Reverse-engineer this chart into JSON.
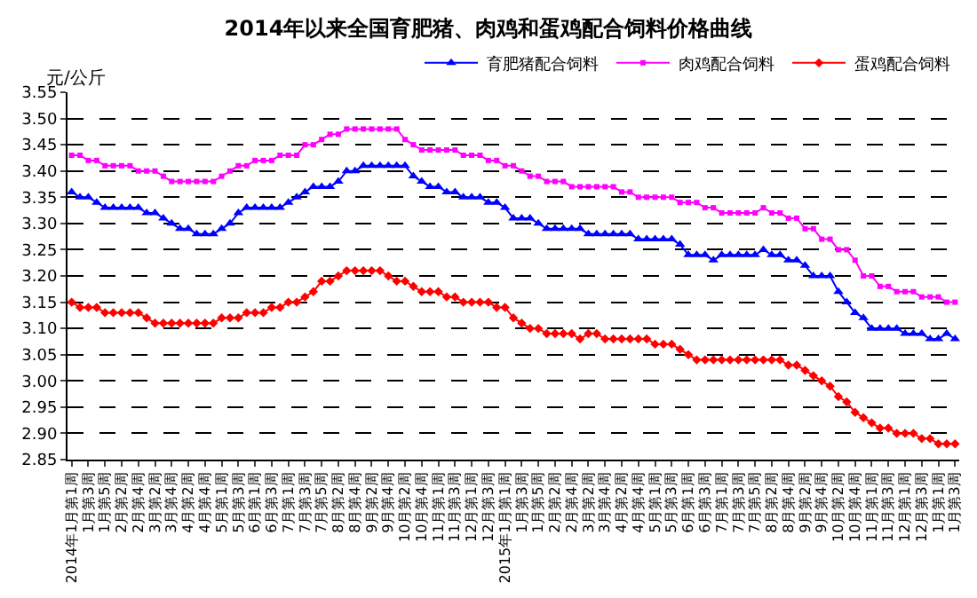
{
  "chart_data": {
    "type": "line",
    "title": "2014年以来全国育肥猪、肉鸡和蛋鸡配合饲料价格曲线",
    "ylabel": "元/公斤",
    "categories": [
      "2014年1月第1周",
      null,
      "1月第3周",
      null,
      "1月第5周",
      null,
      "2月第2周",
      null,
      "2月第4周",
      null,
      "3月第2周",
      null,
      "3月第4周",
      null,
      "4月第2周",
      null,
      "4月第4周",
      null,
      "5月第1周",
      null,
      "5月第3周",
      null,
      "6月第1周",
      null,
      "6月第3周",
      null,
      "7月第1周",
      null,
      "7月第3周",
      null,
      "7月第5周",
      null,
      "8月第2周",
      null,
      "8月第4周",
      null,
      "9月第2周",
      null,
      "9月第4周",
      null,
      "10月第2周",
      null,
      "10月第4周",
      null,
      "11月第1周",
      null,
      "11月第3周",
      null,
      "12月第1周",
      null,
      "12月第3周",
      null,
      "2015年1月第1周",
      null,
      "1月第3周",
      null,
      "1月第5周",
      null,
      "2月第2周",
      null,
      "2月第4周",
      null,
      "3月第2周",
      null,
      "3月第4周",
      null,
      "4月第2周",
      null,
      "4月第4周",
      null,
      "5月第1周",
      null,
      "5月第3周",
      null,
      "6月第1周",
      null,
      "6月第3周",
      null,
      "7月第1周",
      null,
      "7月第3周",
      null,
      "7月第5周",
      null,
      "8月第2周",
      null,
      "8月第4周",
      null,
      "9月第2周",
      null,
      "9月第4周",
      null,
      "10月第2周",
      null,
      "10月第4周",
      null,
      "11月第1周",
      null,
      "11月第3周",
      null,
      "12月第1周",
      null,
      "12月第3周",
      null,
      "1月第1周",
      null,
      "1月第3周"
    ],
    "series": [
      {
        "name": "育肥猪配合饲料",
        "color": "#0000ff",
        "marker": "triangle",
        "values": [
          3.36,
          3.35,
          3.35,
          3.34,
          3.33,
          3.33,
          3.33,
          3.33,
          3.33,
          3.32,
          3.32,
          3.31,
          3.3,
          3.29,
          3.29,
          3.28,
          3.28,
          3.28,
          3.29,
          3.3,
          3.32,
          3.33,
          3.33,
          3.33,
          3.33,
          3.33,
          3.34,
          3.35,
          3.36,
          3.37,
          3.37,
          3.37,
          3.38,
          3.4,
          3.4,
          3.41,
          3.41,
          3.41,
          3.41,
          3.41,
          3.41,
          3.39,
          3.38,
          3.37,
          3.37,
          3.36,
          3.36,
          3.35,
          3.35,
          3.35,
          3.34,
          3.34,
          3.33,
          3.31,
          3.31,
          3.31,
          3.3,
          3.29,
          3.29,
          3.29,
          3.29,
          3.29,
          3.28,
          3.28,
          3.28,
          3.28,
          3.28,
          3.28,
          3.27,
          3.27,
          3.27,
          3.27,
          3.27,
          3.26,
          3.24,
          3.24,
          3.24,
          3.23,
          3.24,
          3.24,
          3.24,
          3.24,
          3.24,
          3.25,
          3.24,
          3.24,
          3.23,
          3.23,
          3.22,
          3.2,
          3.2,
          3.2,
          3.17,
          3.15,
          3.13,
          3.12,
          3.1,
          3.1,
          3.1,
          3.1,
          3.09,
          3.09,
          3.09,
          3.08,
          3.08,
          3.09,
          3.08
        ]
      },
      {
        "name": "肉鸡配合饲料",
        "color": "#ff00ff",
        "marker": "square",
        "values": [
          3.43,
          3.43,
          3.42,
          3.42,
          3.41,
          3.41,
          3.41,
          3.41,
          3.4,
          3.4,
          3.4,
          3.39,
          3.38,
          3.38,
          3.38,
          3.38,
          3.38,
          3.38,
          3.39,
          3.4,
          3.41,
          3.41,
          3.42,
          3.42,
          3.42,
          3.43,
          3.43,
          3.43,
          3.45,
          3.45,
          3.46,
          3.47,
          3.47,
          3.48,
          3.48,
          3.48,
          3.48,
          3.48,
          3.48,
          3.48,
          3.46,
          3.45,
          3.44,
          3.44,
          3.44,
          3.44,
          3.44,
          3.43,
          3.43,
          3.43,
          3.42,
          3.42,
          3.41,
          3.41,
          3.4,
          3.39,
          3.39,
          3.38,
          3.38,
          3.38,
          3.37,
          3.37,
          3.37,
          3.37,
          3.37,
          3.37,
          3.36,
          3.36,
          3.35,
          3.35,
          3.35,
          3.35,
          3.35,
          3.34,
          3.34,
          3.34,
          3.33,
          3.33,
          3.32,
          3.32,
          3.32,
          3.32,
          3.32,
          3.33,
          3.32,
          3.32,
          3.31,
          3.31,
          3.29,
          3.29,
          3.27,
          3.27,
          3.25,
          3.25,
          3.23,
          3.2,
          3.2,
          3.18,
          3.18,
          3.17,
          3.17,
          3.17,
          3.16,
          3.16,
          3.16,
          3.15,
          3.15
        ]
      },
      {
        "name": "蛋鸡配合饲料",
        "color": "#ff0000",
        "marker": "diamond",
        "values": [
          3.15,
          3.14,
          3.14,
          3.14,
          3.13,
          3.13,
          3.13,
          3.13,
          3.13,
          3.12,
          3.11,
          3.11,
          3.11,
          3.11,
          3.11,
          3.11,
          3.11,
          3.11,
          3.12,
          3.12,
          3.12,
          3.13,
          3.13,
          3.13,
          3.14,
          3.14,
          3.15,
          3.15,
          3.16,
          3.17,
          3.19,
          3.19,
          3.2,
          3.21,
          3.21,
          3.21,
          3.21,
          3.21,
          3.2,
          3.19,
          3.19,
          3.18,
          3.17,
          3.17,
          3.17,
          3.16,
          3.16,
          3.15,
          3.15,
          3.15,
          3.15,
          3.14,
          3.14,
          3.12,
          3.11,
          3.1,
          3.1,
          3.09,
          3.09,
          3.09,
          3.09,
          3.08,
          3.09,
          3.09,
          3.08,
          3.08,
          3.08,
          3.08,
          3.08,
          3.08,
          3.07,
          3.07,
          3.07,
          3.06,
          3.05,
          3.04,
          3.04,
          3.04,
          3.04,
          3.04,
          3.04,
          3.04,
          3.04,
          3.04,
          3.04,
          3.04,
          3.03,
          3.03,
          3.02,
          3.01,
          3.0,
          2.99,
          2.97,
          2.96,
          2.94,
          2.93,
          2.92,
          2.91,
          2.91,
          2.9,
          2.9,
          2.9,
          2.89,
          2.89,
          2.88,
          2.88,
          2.88
        ]
      }
    ],
    "ylim": [
      2.85,
      3.55
    ],
    "yticks": [
      2.85,
      {
        "value": 2.9,
        "label": "2.90"
      },
      2.95,
      {
        "value": 3,
        "label": "3.00"
      },
      3.05,
      {
        "value": 3.1,
        "label": "3.10"
      },
      3.15,
      {
        "value": 3.2,
        "label": "3.20"
      },
      3.25,
      {
        "value": 3.3,
        "label": "3.30"
      },
      3.35,
      {
        "value": 3.4,
        "label": "3.40"
      },
      3.45,
      {
        "value": 3.5,
        "label": "3.50"
      },
      3.55
    ],
    "grid": "y",
    "legend": "top right",
    "line_style": "solid"
  }
}
